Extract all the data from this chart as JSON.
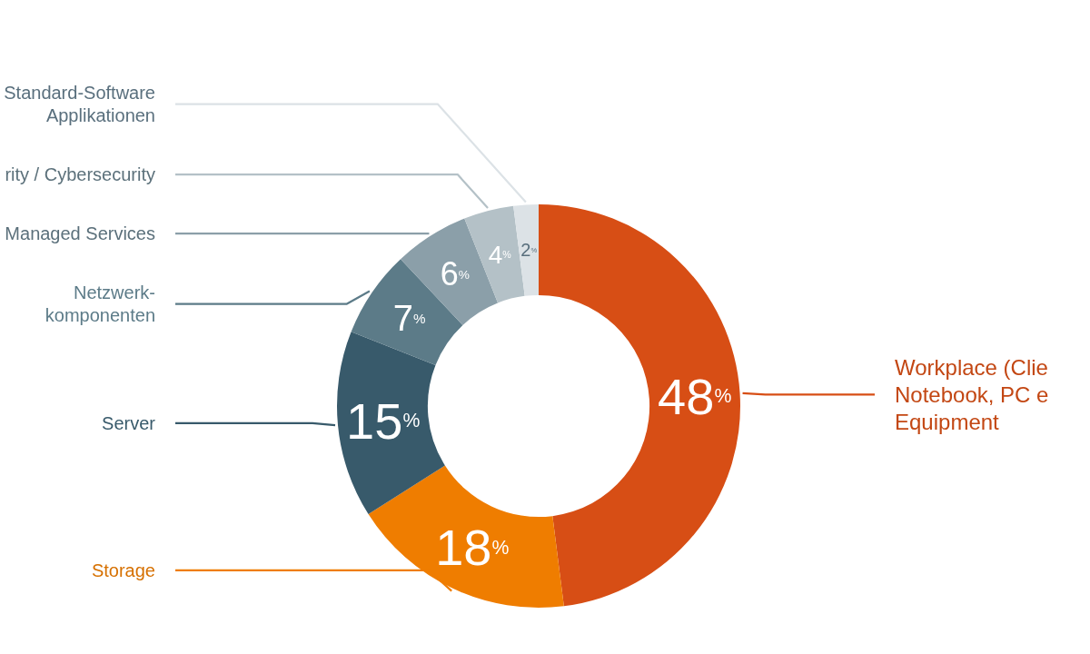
{
  "chart_data": {
    "type": "donut",
    "categories": [
      "Workplace (Clie\nNotebook, PC e\nEquipment",
      "Storage",
      "Server",
      "Netzwerk-\nkomponenten",
      "Managed Services",
      "rity / Cybersecurity",
      "Standard-Software\nApplikationen"
    ],
    "values": [
      48,
      18,
      15,
      7,
      6,
      4,
      2
    ],
    "colors": [
      "#d74e15",
      "#ef7d00",
      "#385a6b",
      "#5c7b88",
      "#8b9fa9",
      "#b4c1c7",
      "#dce2e6"
    ],
    "value_labels": [
      "48%",
      "18%",
      "15%",
      "7%",
      "6%",
      "4%",
      "2%"
    ]
  }
}
